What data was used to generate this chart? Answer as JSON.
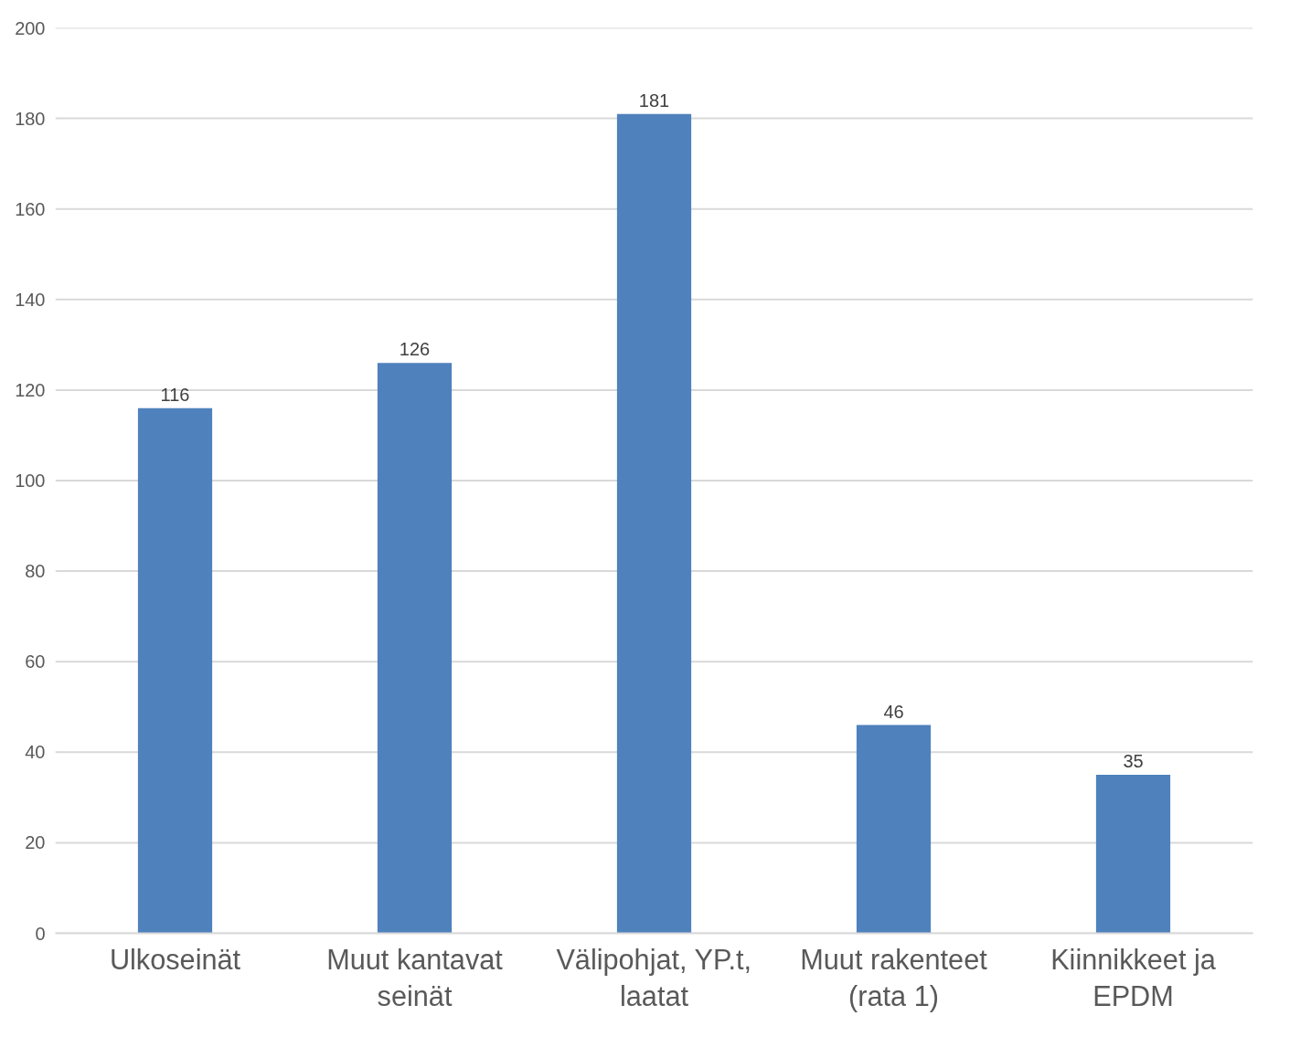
{
  "chart_data": {
    "type": "bar",
    "categories": [
      "Ulkoseinät",
      "Muut kantavat seinät",
      "Välipohjat, YP.t, laatat",
      "Muut rakenteet (rata 1)",
      "Kiinnikkeet ja EPDM"
    ],
    "values": [
      116,
      126,
      181,
      46,
      35
    ],
    "color": "#4f81bd",
    "ylim": [
      0,
      200
    ],
    "yticks": [
      0,
      20,
      40,
      60,
      80,
      100,
      120,
      140,
      160,
      180,
      200
    ],
    "grid": "y",
    "data_labels": true
  }
}
